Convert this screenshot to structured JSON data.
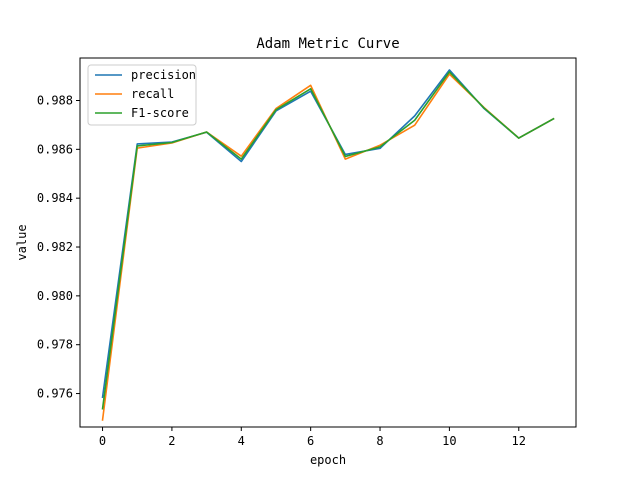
{
  "chart_data": {
    "type": "line",
    "title": "Adam Metric Curve",
    "xlabel": "epoch",
    "ylabel": "value",
    "x": [
      0,
      1,
      2,
      3,
      4,
      5,
      6,
      7,
      8,
      9,
      10,
      11,
      12,
      13
    ],
    "xlim": [
      -0.65,
      13.65
    ],
    "ylim": [
      0.97463,
      0.98974
    ],
    "xticks": [
      0,
      2,
      4,
      6,
      8,
      10,
      12
    ],
    "xtick_labels": [
      "0",
      "2",
      "4",
      "6",
      "8",
      "10",
      "12"
    ],
    "yticks": [
      0.976,
      0.978,
      0.98,
      0.982,
      0.984,
      0.986,
      0.988
    ],
    "ytick_labels": [
      "0.976",
      "0.978",
      "0.980",
      "0.982",
      "0.984",
      "0.986",
      "0.988"
    ],
    "grid": false,
    "legend_position": "upper-left",
    "series": [
      {
        "name": "precision",
        "color": "#1f77b4",
        "values": [
          0.97585,
          0.98622,
          0.9863,
          0.9867,
          0.9855,
          0.98757,
          0.98838,
          0.98579,
          0.98604,
          0.98737,
          0.98925,
          0.98767,
          0.98646,
          0.98725
        ]
      },
      {
        "name": "recall",
        "color": "#ff7f0e",
        "values": [
          0.97492,
          0.98605,
          0.98626,
          0.98671,
          0.98572,
          0.98767,
          0.98862,
          0.9856,
          0.98617,
          0.98699,
          0.98908,
          0.98771,
          0.98646,
          0.98725
        ]
      },
      {
        "name": "F1-score",
        "color": "#2ca02c",
        "values": [
          0.97538,
          0.98614,
          0.98628,
          0.98671,
          0.9856,
          0.98762,
          0.98848,
          0.98571,
          0.9861,
          0.98719,
          0.98917,
          0.98769,
          0.98646,
          0.98725
        ]
      }
    ]
  }
}
